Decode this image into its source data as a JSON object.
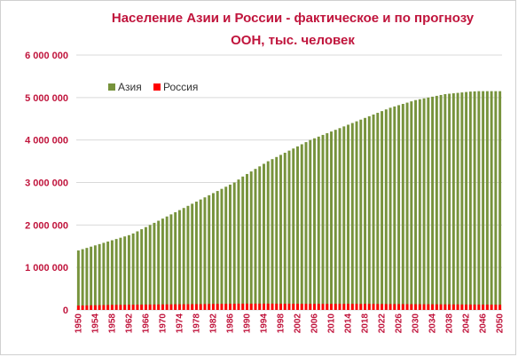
{
  "chart_data": {
    "type": "bar",
    "title_lines": [
      "Население Азии и России - фактическое и по прогнозу",
      "ООН,  тыс. человек"
    ],
    "xlabel": "",
    "ylabel": "",
    "ylim": [
      0,
      6000000
    ],
    "y_ticks": [
      {
        "value": 0,
        "label": "0"
      },
      {
        "value": 1000000,
        "label": "1 000 000"
      },
      {
        "value": 2000000,
        "label": "2 000 000"
      },
      {
        "value": 3000000,
        "label": "3 000 000"
      },
      {
        "value": 4000000,
        "label": "4 000 000"
      },
      {
        "value": 5000000,
        "label": "5 000 000"
      },
      {
        "value": 6000000,
        "label": "6 000 000"
      }
    ],
    "x_tick_labels": [
      "1950",
      "1954",
      "1958",
      "1962",
      "1966",
      "1970",
      "1974",
      "1978",
      "1982",
      "1986",
      "1990",
      "1994",
      "1998",
      "2002",
      "2006",
      "2010",
      "2014",
      "2018",
      "2022",
      "2026",
      "2030",
      "2034",
      "2038",
      "2042",
      "2046",
      "2050"
    ],
    "grid": true,
    "legend_position": "top-left",
    "colors": {
      "asia": "#77933c",
      "russia": "#ff0000",
      "grid": "#d9d9d9",
      "title": "#c0143c"
    },
    "categories": [
      "1950",
      "1951",
      "1952",
      "1953",
      "1954",
      "1955",
      "1956",
      "1957",
      "1958",
      "1959",
      "1960",
      "1961",
      "1962",
      "1963",
      "1964",
      "1965",
      "1966",
      "1967",
      "1968",
      "1969",
      "1970",
      "1971",
      "1972",
      "1973",
      "1974",
      "1975",
      "1976",
      "1977",
      "1978",
      "1979",
      "1980",
      "1981",
      "1982",
      "1983",
      "1984",
      "1985",
      "1986",
      "1987",
      "1988",
      "1989",
      "1990",
      "1991",
      "1992",
      "1993",
      "1994",
      "1995",
      "1996",
      "1997",
      "1998",
      "1999",
      "2000",
      "2001",
      "2002",
      "2003",
      "2004",
      "2005",
      "2006",
      "2007",
      "2008",
      "2009",
      "2010",
      "2011",
      "2012",
      "2013",
      "2014",
      "2015",
      "2016",
      "2017",
      "2018",
      "2019",
      "2020",
      "2021",
      "2022",
      "2023",
      "2024",
      "2025",
      "2026",
      "2027",
      "2028",
      "2029",
      "2030",
      "2031",
      "2032",
      "2033",
      "2034",
      "2035",
      "2036",
      "2037",
      "2038",
      "2039",
      "2040",
      "2041",
      "2042",
      "2043",
      "2044",
      "2045",
      "2046",
      "2047",
      "2048",
      "2049",
      "2050"
    ],
    "series": [
      {
        "name": "Азия",
        "values": [
          1400000,
          1430000,
          1460000,
          1490000,
          1520000,
          1550000,
          1580000,
          1610000,
          1640000,
          1670000,
          1700000,
          1730000,
          1760000,
          1800000,
          1850000,
          1900000,
          1950000,
          2000000,
          2050000,
          2100000,
          2150000,
          2200000,
          2250000,
          2300000,
          2350000,
          2400000,
          2450000,
          2500000,
          2550000,
          2600000,
          2650000,
          2700000,
          2750000,
          2800000,
          2850000,
          2900000,
          2950000,
          3000000,
          3070000,
          3140000,
          3200000,
          3260000,
          3320000,
          3380000,
          3440000,
          3500000,
          3550000,
          3600000,
          3650000,
          3700000,
          3750000,
          3800000,
          3850000,
          3900000,
          3950000,
          4000000,
          4040000,
          4080000,
          4120000,
          4160000,
          4200000,
          4240000,
          4280000,
          4320000,
          4360000,
          4400000,
          4440000,
          4480000,
          4520000,
          4560000,
          4600000,
          4640000,
          4680000,
          4720000,
          4760000,
          4790000,
          4820000,
          4850000,
          4880000,
          4910000,
          4940000,
          4960000,
          4980000,
          5000000,
          5020000,
          5040000,
          5060000,
          5080000,
          5090000,
          5100000,
          5110000,
          5120000,
          5130000,
          5140000,
          5145000,
          5150000,
          5150000,
          5150000,
          5150000,
          5150000,
          5150000
        ]
      },
      {
        "name": "Россия",
        "values": [
          103000,
          105000,
          107000,
          109000,
          111000,
          113000,
          115000,
          117000,
          119000,
          120000,
          120000,
          121000,
          122000,
          123000,
          124000,
          126000,
          127000,
          128000,
          128000,
          129000,
          130000,
          131000,
          132000,
          133000,
          133000,
          134000,
          135000,
          136000,
          137000,
          137000,
          139000,
          140000,
          141000,
          142000,
          143000,
          144000,
          145000,
          146000,
          147000,
          148000,
          148000,
          148000,
          148000,
          148000,
          148000,
          148000,
          148000,
          147000,
          147000,
          146000,
          146000,
          145000,
          145000,
          144000,
          144000,
          143000,
          143000,
          142000,
          142000,
          142000,
          143000,
          143000,
          143000,
          143000,
          143000,
          143000,
          143000,
          142000,
          142000,
          142000,
          141000,
          140000,
          139000,
          139000,
          138000,
          138000,
          137000,
          137000,
          136000,
          136000,
          135000,
          134000,
          134000,
          133000,
          133000,
          132000,
          132000,
          131000,
          131000,
          130000,
          130000,
          129000,
          128000,
          128000,
          127000,
          127000,
          126000,
          126000,
          125000,
          124000,
          123000
        ]
      }
    ]
  }
}
